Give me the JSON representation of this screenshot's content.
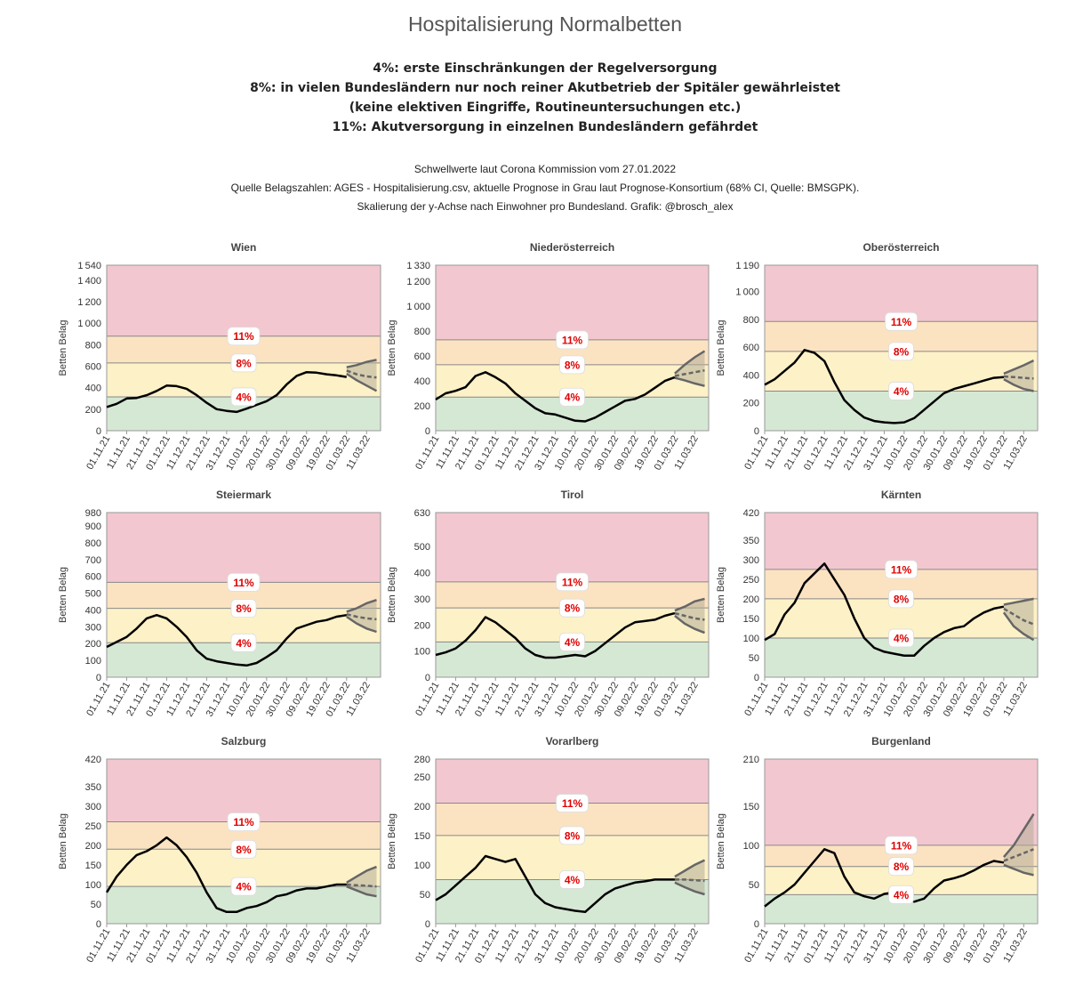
{
  "title": "Hospitalisierung Normalbetten",
  "notes": [
    "4%: erste Einschränkungen der Regelversorgung",
    "8%: in vielen Bundesländern nur noch reiner Akutbetrieb der Spitäler gewährleistet",
    "(keine elektiven Eingriffe, Routineuntersuchungen etc.)",
    "11%: Akutversorgung in einzelnen Bundesländern gefährdet"
  ],
  "source_lines": [
    "Schwellwerte laut Corona Kommission vom 27.01.2022",
    "Quelle Belagszahlen: AGES - Hospitalisierung.csv, aktuelle Prognose in Grau laut Prognose-Konsortium (68% CI, Quelle: BMSGPK).",
    "Skalierung der y-Achse nach Einwohner pro Bundesland. Grafik: @brosch_alex"
  ],
  "colors": {
    "zone_green": "#d5e8d4",
    "zone_yellow": "#fdf1c7",
    "zone_orange": "#fbe3c2",
    "zone_red": "#f2c7d0",
    "threshold_text": "#e00000",
    "actual_line": "#000000",
    "forecast_line": "#666666",
    "forecast_band": "#b5ad98"
  },
  "chart_data": [
    {
      "type": "line",
      "title": "Wien",
      "ylabel": "Betten Belag",
      "ylim": [
        0,
        1540
      ],
      "yticks": [
        0,
        200,
        400,
        600,
        800,
        1000,
        1200,
        1400,
        1540
      ],
      "thresholds": [
        {
          "label": "4%",
          "value": 315
        },
        {
          "label": "8%",
          "value": 630
        },
        {
          "label": "11%",
          "value": 880
        }
      ],
      "x": [
        "01.11.21",
        "06.11.21",
        "11.11.21",
        "16.11.21",
        "21.11.21",
        "26.11.21",
        "01.12.21",
        "06.12.21",
        "11.12.21",
        "16.12.21",
        "21.12.21",
        "26.12.21",
        "31.12.21",
        "05.01.22",
        "10.01.22",
        "15.01.22",
        "20.01.22",
        "25.01.22",
        "30.01.22",
        "04.02.22",
        "09.02.22",
        "14.02.22",
        "19.02.22",
        "24.02.22",
        "01.03.22"
      ],
      "values": [
        220,
        250,
        300,
        305,
        330,
        370,
        420,
        415,
        390,
        330,
        260,
        200,
        185,
        175,
        205,
        240,
        275,
        330,
        430,
        510,
        545,
        540,
        525,
        515,
        500
      ],
      "forecast": {
        "x": [
          "01.03.22",
          "06.03.22",
          "11.03.22",
          "16.03.22"
        ],
        "mid": [
          560,
          525,
          505,
          495
        ],
        "lower": [
          530,
          470,
          420,
          370
        ],
        "upper": [
          590,
          610,
          640,
          660
        ]
      }
    },
    {
      "type": "line",
      "title": "Niederösterreich",
      "ylabel": "Betten Belag",
      "ylim": [
        0,
        1330
      ],
      "yticks": [
        0,
        200,
        400,
        600,
        800,
        1000,
        1200,
        1330
      ],
      "thresholds": [
        {
          "label": "4%",
          "value": 270
        },
        {
          "label": "8%",
          "value": 530
        },
        {
          "label": "11%",
          "value": 730
        }
      ],
      "x": [
        "01.11.21",
        "06.11.21",
        "11.11.21",
        "16.11.21",
        "21.11.21",
        "26.11.21",
        "01.12.21",
        "06.12.21",
        "11.12.21",
        "16.12.21",
        "21.12.21",
        "26.12.21",
        "31.12.21",
        "05.01.22",
        "10.01.22",
        "15.01.22",
        "20.01.22",
        "25.01.22",
        "30.01.22",
        "04.02.22",
        "09.02.22",
        "14.02.22",
        "19.02.22",
        "24.02.22",
        "01.03.22"
      ],
      "values": [
        250,
        300,
        320,
        350,
        440,
        470,
        430,
        380,
        300,
        240,
        180,
        140,
        130,
        105,
        80,
        75,
        105,
        150,
        195,
        240,
        255,
        290,
        345,
        400,
        430
      ],
      "forecast": {
        "x": [
          "01.03.22",
          "06.03.22",
          "11.03.22",
          "16.03.22"
        ],
        "mid": [
          440,
          455,
          470,
          485
        ],
        "lower": [
          425,
          405,
          380,
          360
        ],
        "upper": [
          460,
          530,
          590,
          640
        ]
      }
    },
    {
      "type": "line",
      "title": "Oberösterreich",
      "ylabel": "Betten Belag",
      "ylim": [
        0,
        1190
      ],
      "yticks": [
        0,
        200,
        400,
        600,
        800,
        1000,
        1190
      ],
      "thresholds": [
        {
          "label": "4%",
          "value": 285
        },
        {
          "label": "8%",
          "value": 570
        },
        {
          "label": "11%",
          "value": 785
        }
      ],
      "x": [
        "01.11.21",
        "06.11.21",
        "11.11.21",
        "16.11.21",
        "21.11.21",
        "26.11.21",
        "01.12.21",
        "06.12.21",
        "11.12.21",
        "16.12.21",
        "21.12.21",
        "26.12.21",
        "31.12.21",
        "05.01.22",
        "10.01.22",
        "15.01.22",
        "20.01.22",
        "25.01.22",
        "30.01.22",
        "04.02.22",
        "09.02.22",
        "14.02.22",
        "19.02.22",
        "24.02.22",
        "01.03.22"
      ],
      "values": [
        330,
        370,
        430,
        490,
        580,
        560,
        500,
        350,
        220,
        150,
        95,
        70,
        60,
        55,
        60,
        90,
        150,
        210,
        270,
        300,
        320,
        340,
        360,
        380,
        385
      ],
      "forecast": {
        "x": [
          "01.03.22",
          "06.03.22",
          "11.03.22",
          "16.03.22"
        ],
        "mid": [
          390,
          385,
          380,
          375
        ],
        "lower": [
          370,
          330,
          300,
          285
        ],
        "upper": [
          410,
          440,
          470,
          505
        ]
      }
    },
    {
      "type": "line",
      "title": "Steiermark",
      "ylabel": "Betten Belag",
      "ylim": [
        0,
        980
      ],
      "yticks": [
        0,
        100,
        200,
        300,
        400,
        500,
        600,
        700,
        800,
        900,
        980
      ],
      "thresholds": [
        {
          "label": "4%",
          "value": 205
        },
        {
          "label": "8%",
          "value": 410
        },
        {
          "label": "11%",
          "value": 565
        }
      ],
      "x": [
        "01.11.21",
        "06.11.21",
        "11.11.21",
        "16.11.21",
        "21.11.21",
        "26.11.21",
        "01.12.21",
        "06.12.21",
        "11.12.21",
        "16.12.21",
        "21.12.21",
        "26.12.21",
        "31.12.21",
        "05.01.22",
        "10.01.22",
        "15.01.22",
        "20.01.22",
        "25.01.22",
        "30.01.22",
        "04.02.22",
        "09.02.22",
        "14.02.22",
        "19.02.22",
        "24.02.22",
        "01.03.22"
      ],
      "values": [
        180,
        210,
        240,
        290,
        350,
        370,
        350,
        300,
        240,
        160,
        110,
        95,
        85,
        75,
        70,
        85,
        120,
        160,
        230,
        290,
        310,
        330,
        340,
        360,
        370
      ],
      "forecast": {
        "x": [
          "01.03.22",
          "06.03.22",
          "11.03.22",
          "16.03.22"
        ],
        "mid": [
          375,
          360,
          350,
          345
        ],
        "lower": [
          360,
          320,
          290,
          270
        ],
        "upper": [
          390,
          410,
          440,
          460
        ]
      }
    },
    {
      "type": "line",
      "title": "Tirol",
      "ylabel": "Betten Belag",
      "ylim": [
        0,
        630
      ],
      "yticks": [
        0,
        100,
        200,
        300,
        400,
        500,
        630
      ],
      "thresholds": [
        {
          "label": "4%",
          "value": 135
        },
        {
          "label": "8%",
          "value": 265
        },
        {
          "label": "11%",
          "value": 365
        }
      ],
      "x": [
        "01.11.21",
        "06.11.21",
        "11.11.21",
        "16.11.21",
        "21.11.21",
        "26.11.21",
        "01.12.21",
        "06.12.21",
        "11.12.21",
        "16.12.21",
        "21.12.21",
        "26.12.21",
        "31.12.21",
        "05.01.22",
        "10.01.22",
        "15.01.22",
        "20.01.22",
        "25.01.22",
        "30.01.22",
        "04.02.22",
        "09.02.22",
        "14.02.22",
        "19.02.22",
        "24.02.22",
        "01.03.22"
      ],
      "values": [
        85,
        95,
        110,
        140,
        180,
        230,
        210,
        180,
        150,
        110,
        85,
        75,
        75,
        80,
        85,
        80,
        100,
        130,
        160,
        190,
        210,
        215,
        220,
        235,
        245
      ],
      "forecast": {
        "x": [
          "01.03.22",
          "06.03.22",
          "11.03.22",
          "16.03.22"
        ],
        "mid": [
          245,
          235,
          225,
          220
        ],
        "lower": [
          235,
          205,
          185,
          170
        ],
        "upper": [
          255,
          270,
          290,
          300
        ]
      }
    },
    {
      "type": "line",
      "title": "Kärnten",
      "ylabel": "Betten Belag",
      "ylim": [
        0,
        420
      ],
      "yticks": [
        0,
        50,
        100,
        150,
        200,
        250,
        300,
        350,
        420
      ],
      "thresholds": [
        {
          "label": "4%",
          "value": 100
        },
        {
          "label": "8%",
          "value": 200
        },
        {
          "label": "11%",
          "value": 275
        }
      ],
      "x": [
        "01.11.21",
        "06.11.21",
        "11.11.21",
        "16.11.21",
        "21.11.21",
        "26.11.21",
        "01.12.21",
        "06.12.21",
        "11.12.21",
        "16.12.21",
        "21.12.21",
        "26.12.21",
        "31.12.21",
        "05.01.22",
        "10.01.22",
        "15.01.22",
        "20.01.22",
        "25.01.22",
        "30.01.22",
        "04.02.22",
        "09.02.22",
        "14.02.22",
        "19.02.22",
        "24.02.22",
        "01.03.22"
      ],
      "values": [
        95,
        110,
        160,
        190,
        240,
        265,
        290,
        250,
        210,
        150,
        100,
        75,
        65,
        60,
        55,
        55,
        80,
        100,
        115,
        125,
        130,
        150,
        165,
        175,
        180
      ],
      "forecast": {
        "x": [
          "01.03.22",
          "06.03.22",
          "11.03.22",
          "16.03.22"
        ],
        "mid": [
          175,
          160,
          145,
          135
        ],
        "lower": [
          165,
          130,
          110,
          95
        ],
        "upper": [
          185,
          190,
          195,
          200
        ]
      }
    },
    {
      "type": "line",
      "title": "Salzburg",
      "ylabel": "Betten Belag",
      "ylim": [
        0,
        420
      ],
      "yticks": [
        0,
        50,
        100,
        150,
        200,
        250,
        300,
        350,
        420
      ],
      "thresholds": [
        {
          "label": "4%",
          "value": 95
        },
        {
          "label": "8%",
          "value": 190
        },
        {
          "label": "11%",
          "value": 260
        }
      ],
      "x": [
        "01.11.21",
        "06.11.21",
        "11.11.21",
        "16.11.21",
        "21.11.21",
        "26.11.21",
        "01.12.21",
        "06.12.21",
        "11.12.21",
        "16.12.21",
        "21.12.21",
        "26.12.21",
        "31.12.21",
        "05.01.22",
        "10.01.22",
        "15.01.22",
        "20.01.22",
        "25.01.22",
        "30.01.22",
        "04.02.22",
        "09.02.22",
        "14.02.22",
        "19.02.22",
        "24.02.22",
        "01.03.22"
      ],
      "values": [
        80,
        120,
        150,
        175,
        185,
        200,
        220,
        200,
        170,
        130,
        80,
        40,
        30,
        30,
        40,
        45,
        55,
        70,
        75,
        85,
        90,
        90,
        95,
        100,
        100
      ],
      "forecast": {
        "x": [
          "01.03.22",
          "06.03.22",
          "11.03.22",
          "16.03.22"
        ],
        "mid": [
          100,
          98,
          97,
          95
        ],
        "lower": [
          95,
          85,
          75,
          70
        ],
        "upper": [
          105,
          120,
          135,
          145
        ]
      }
    },
    {
      "type": "line",
      "title": "Vorarlberg",
      "ylabel": "Betten Belag",
      "ylim": [
        0,
        280
      ],
      "yticks": [
        0,
        50,
        100,
        150,
        200,
        250,
        280
      ],
      "thresholds": [
        {
          "label": "4%",
          "value": 75
        },
        {
          "label": "8%",
          "value": 150
        },
        {
          "label": "11%",
          "value": 205
        }
      ],
      "x": [
        "01.11.21",
        "06.11.21",
        "11.11.21",
        "16.11.21",
        "21.11.21",
        "26.11.21",
        "01.12.21",
        "06.12.21",
        "11.12.21",
        "16.12.21",
        "21.12.21",
        "26.12.21",
        "31.12.21",
        "05.01.22",
        "10.01.22",
        "15.01.22",
        "20.01.22",
        "25.01.22",
        "30.01.22",
        "04.02.22",
        "09.02.22",
        "14.02.22",
        "19.02.22",
        "24.02.22",
        "01.03.22"
      ],
      "values": [
        40,
        50,
        65,
        80,
        95,
        115,
        110,
        105,
        110,
        80,
        50,
        35,
        28,
        25,
        22,
        20,
        35,
        50,
        60,
        65,
        70,
        72,
        75,
        75,
        75
      ],
      "forecast": {
        "x": [
          "01.03.22",
          "06.03.22",
          "11.03.22",
          "16.03.22"
        ],
        "mid": [
          75,
          75,
          74,
          73
        ],
        "lower": [
          70,
          62,
          55,
          50
        ],
        "upper": [
          80,
          90,
          100,
          108
        ]
      }
    },
    {
      "type": "line",
      "title": "Burgenland",
      "ylabel": "Betten Belag",
      "ylim": [
        0,
        210
      ],
      "yticks": [
        0,
        50,
        100,
        150,
        210
      ],
      "thresholds": [
        {
          "label": "4%",
          "value": 37
        },
        {
          "label": "8%",
          "value": 73
        },
        {
          "label": "11%",
          "value": 100
        }
      ],
      "x": [
        "01.11.21",
        "06.11.21",
        "11.11.21",
        "16.11.21",
        "21.11.21",
        "26.11.21",
        "01.12.21",
        "06.12.21",
        "11.12.21",
        "16.12.21",
        "21.12.21",
        "26.12.21",
        "31.12.21",
        "05.01.22",
        "10.01.22",
        "15.01.22",
        "20.01.22",
        "25.01.22",
        "30.01.22",
        "04.02.22",
        "09.02.22",
        "14.02.22",
        "19.02.22",
        "24.02.22",
        "01.03.22"
      ],
      "values": [
        22,
        32,
        40,
        50,
        65,
        80,
        95,
        90,
        60,
        40,
        35,
        32,
        38,
        40,
        35,
        28,
        32,
        45,
        55,
        58,
        62,
        68,
        75,
        80,
        78
      ],
      "forecast": {
        "x": [
          "01.03.22",
          "06.03.22",
          "11.03.22",
          "16.03.22"
        ],
        "mid": [
          80,
          85,
          90,
          95
        ],
        "lower": [
          75,
          70,
          65,
          62
        ],
        "upper": [
          85,
          100,
          120,
          140
        ]
      }
    }
  ],
  "x_tick_labels": [
    "01.11.21",
    "11.11.21",
    "21.11.21",
    "01.12.21",
    "11.12.21",
    "21.12.21",
    "31.12.21",
    "10.01.22",
    "20.01.22",
    "30.01.22",
    "09.02.22",
    "19.02.22",
    "01.03.22",
    "11.03.22"
  ]
}
